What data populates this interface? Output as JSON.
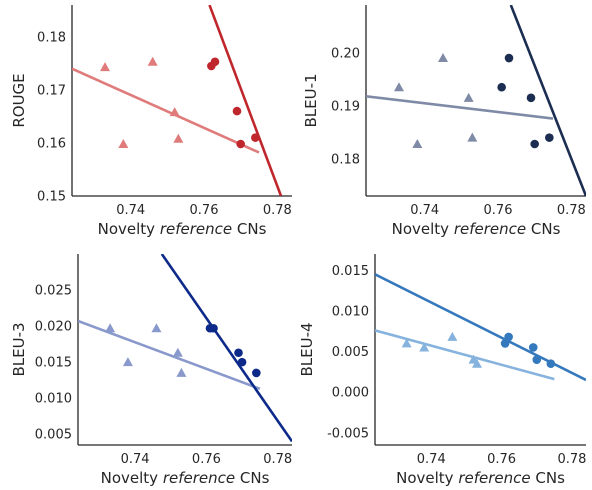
{
  "chart_data": [
    {
      "type": "scatter",
      "ylabel": "ROUGE",
      "xlabel_parts": [
        "Novelty ",
        "reference",
        " CNs"
      ],
      "xlim": [
        0.724,
        0.784
      ],
      "ylim": [
        0.15,
        0.186
      ],
      "xticks": [
        "0.74",
        "0.76",
        "0.78"
      ],
      "yticks": [
        "0.15",
        "0.16",
        "0.17",
        "0.18"
      ],
      "series": [
        {
          "marker": "triangle",
          "color": "#e07b7b",
          "x": [
            0.733,
            0.738,
            0.746,
            0.752,
            0.753
          ],
          "y": [
            0.1743,
            0.1598,
            0.1753,
            0.1658,
            0.1608
          ],
          "fit": [
            [
              0.724,
              0.174
            ],
            [
              0.775,
              0.1582
            ]
          ]
        },
        {
          "marker": "circle",
          "color": "#c0272d",
          "x": [
            0.762,
            0.763,
            0.769,
            0.77,
            0.774
          ],
          "y": [
            0.1745,
            0.1753,
            0.166,
            0.1598,
            0.161
          ],
          "fit": [
            [
              0.7615,
              0.186
            ],
            [
              0.781,
              0.15
            ]
          ]
        }
      ]
    },
    {
      "type": "scatter",
      "ylabel": "BLEU-1",
      "xlabel_parts": [
        "Novelty ",
        "reference",
        " CNs"
      ],
      "xlim": [
        0.724,
        0.784
      ],
      "ylim": [
        0.173,
        0.209
      ],
      "xticks": [
        "0.74",
        "0.76",
        "0.78"
      ],
      "yticks": [
        "0.18",
        "0.19",
        "0.20"
      ],
      "series": [
        {
          "marker": "triangle",
          "color": "#7f8ba6",
          "x": [
            0.733,
            0.738,
            0.745,
            0.752,
            0.753
          ],
          "y": [
            0.1935,
            0.1828,
            0.199,
            0.1915,
            0.184
          ],
          "fit": [
            [
              0.724,
              0.1918
            ],
            [
              0.775,
              0.1876
            ]
          ]
        },
        {
          "marker": "circle",
          "color": "#1c2d52",
          "x": [
            0.761,
            0.763,
            0.769,
            0.77,
            0.774
          ],
          "y": [
            0.1935,
            0.199,
            0.1915,
            0.1828,
            0.184
          ],
          "fit": [
            [
              0.7635,
              0.209
            ],
            [
              0.784,
              0.173
            ]
          ]
        }
      ]
    },
    {
      "type": "scatter",
      "ylabel": "BLEU-3",
      "xlabel_parts": [
        "Novelty ",
        "reference",
        " CNs"
      ],
      "xlim": [
        0.724,
        0.784
      ],
      "ylim": [
        0.0035,
        0.03
      ],
      "xticks": [
        "0.74",
        "0.76",
        "0.78"
      ],
      "yticks": [
        "0.005",
        "0.010",
        "0.015",
        "0.020",
        "0.025"
      ],
      "series": [
        {
          "marker": "triangle",
          "color": "#8a99cc",
          "x": [
            0.733,
            0.738,
            0.746,
            0.752,
            0.753
          ],
          "y": [
            0.0197,
            0.015,
            0.0197,
            0.0163,
            0.0135
          ],
          "fit": [
            [
              0.724,
              0.0207
            ],
            [
              0.775,
              0.0113
            ]
          ]
        },
        {
          "marker": "circle",
          "color": "#0d2a8a",
          "x": [
            0.761,
            0.762,
            0.769,
            0.77,
            0.774
          ],
          "y": [
            0.0197,
            0.0197,
            0.0163,
            0.015,
            0.0135
          ],
          "fit": [
            [
              0.7475,
              0.03
            ],
            [
              0.784,
              0.004
            ]
          ]
        }
      ]
    },
    {
      "type": "scatter",
      "ylabel": "BLEU-4",
      "xlabel_parts": [
        "Novelty ",
        "reference",
        " CNs"
      ],
      "xlim": [
        0.724,
        0.784
      ],
      "ylim": [
        -0.0065,
        0.017
      ],
      "xticks": [
        "0.74",
        "0.76",
        "0.78"
      ],
      "yticks": [
        "-0.005",
        "0.000",
        "0.005",
        "0.010",
        "0.015"
      ],
      "series": [
        {
          "marker": "triangle",
          "color": "#86b3de",
          "x": [
            0.733,
            0.738,
            0.746,
            0.752,
            0.753
          ],
          "y": [
            0.006,
            0.0055,
            0.0068,
            0.004,
            0.0035
          ],
          "fit": [
            [
              0.724,
              0.0076
            ],
            [
              0.775,
              0.0016
            ]
          ]
        },
        {
          "marker": "circle",
          "color": "#3478bd",
          "x": [
            0.761,
            0.762,
            0.769,
            0.77,
            0.774
          ],
          "y": [
            0.006,
            0.0068,
            0.0055,
            0.004,
            0.0035
          ],
          "fit": [
            [
              0.724,
              0.0145
            ],
            [
              0.784,
              0.0015
            ]
          ]
        }
      ]
    }
  ]
}
